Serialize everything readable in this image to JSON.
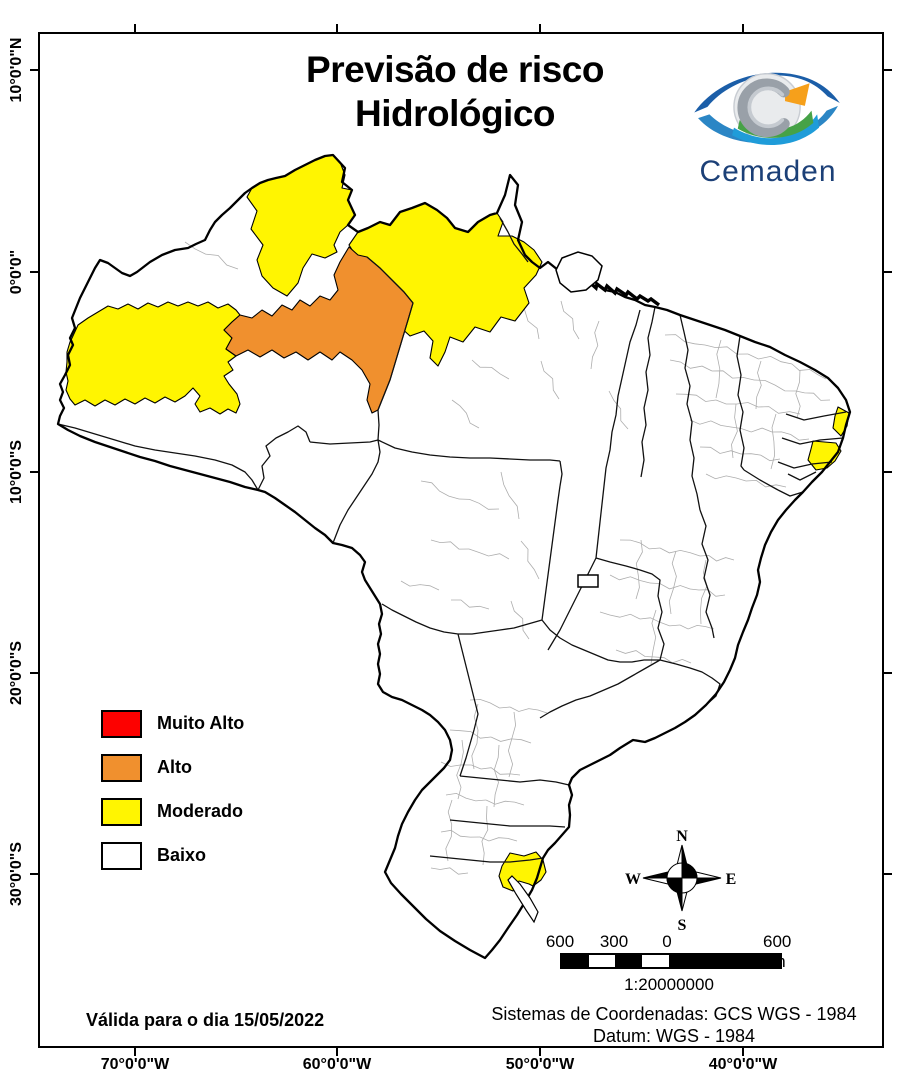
{
  "title": {
    "line1": "Previsão de risco",
    "line2": "Hidrológico"
  },
  "logo": {
    "name": "Cemaden"
  },
  "risk_colors": {
    "muito_alto": "#FD0100",
    "alto": "#F0902E",
    "moderado": "#FFF501",
    "baixo": "#FFFFFF"
  },
  "legend": {
    "items": [
      {
        "label": "Muito Alto"
      },
      {
        "label": "Alto"
      },
      {
        "label": "Moderado"
      },
      {
        "label": "Baixo"
      }
    ]
  },
  "axes": {
    "lat": [
      "10°0'0\"N",
      "0°0'0\"",
      "10°0'0\"S",
      "20°0'0\"S",
      "30°0'0\"S"
    ],
    "lon": [
      "70°0'0\"W",
      "60°0'0\"W",
      "50°0'0\"W",
      "40°0'0\"W"
    ]
  },
  "compass": {
    "n": "N",
    "s": "S",
    "e": "E",
    "w": "W"
  },
  "scale_bar": {
    "l600a": "600",
    "l300": "300",
    "l0": "0",
    "l600b": "600 km",
    "ratio": "1:20000000"
  },
  "validity": "Válida para o dia 15/05/2022",
  "crs": {
    "line1": "Sistemas de Coordenadas: GCS WGS - 1984",
    "line2": "Datum: WGS - 1984"
  }
}
